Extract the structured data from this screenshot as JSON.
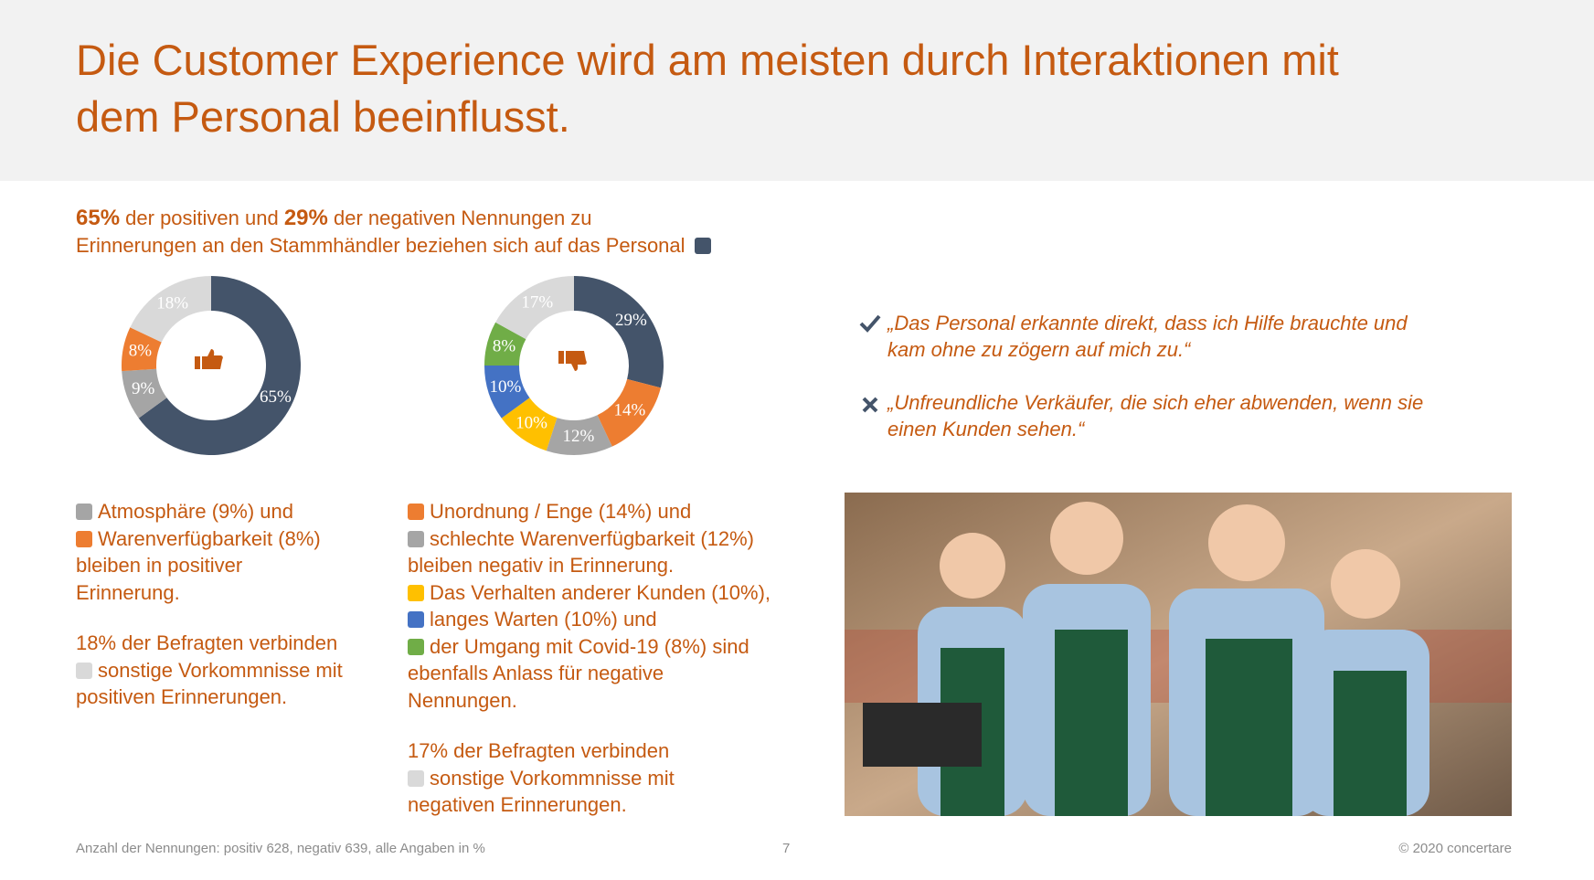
{
  "header": {
    "title_lines": [
      "Die Customer Experience wird am meisten durch Interaktionen mit",
      "dem Personal beeinflusst."
    ]
  },
  "intro": {
    "line1": [
      "65%",
      " der positiven und ",
      "29%",
      " der negativen Nennungen zu"
    ],
    "line2": "Erinnerungen an den Stammhändler beziehen sich auf das Personal"
  },
  "chart_data": [
    {
      "type": "pie",
      "values": [
        65,
        9,
        8,
        18
      ],
      "value_labels": [
        "65%",
        "9%",
        "8%",
        "18%"
      ],
      "colors": [
        "#44546a",
        "#a5a5a5",
        "#ed7d31",
        "#d9d9d9"
      ]
    },
    {
      "type": "pie",
      "values": [
        29,
        14,
        12,
        10,
        10,
        8,
        17
      ],
      "value_labels": [
        "29%",
        "14%",
        "12%",
        "10%",
        "10%",
        "8%",
        "17%"
      ],
      "colors": [
        "#44546a",
        "#ed7d31",
        "#a5a5a5",
        "#ffc000",
        "#4472c4",
        "#70ad47",
        "#d9d9d9"
      ]
    }
  ],
  "left_notes": [
    "Atmosphäre (9%) und",
    "Warenverfügbarkeit (8%)",
    "bleiben in positiver",
    "Erinnerung.",
    "18% der Befragten verbinden",
    "sonstige Vorkommnisse mit",
    "positiven Erinnerungen."
  ],
  "right_notes": [
    "Unordnung / Enge (14%) und",
    "schlechte Warenverfügbarkeit (12%)",
    "bleiben negativ in Erinnerung.",
    "Das Verhalten anderer Kunden (10%),",
    "langes Warten (10%) und",
    "der Umgang mit Covid-19 (8%) sind",
    "ebenfalls Anlass für negative",
    "Nennungen.",
    "17% der Befragten verbinden",
    "sonstige Vorkommnisse mit",
    "negativen Erinnerungen."
  ],
  "quotes": [
    [
      "„Das Personal erkannte direkt, dass ich Hilfe brauchte und",
      "kam ohne zu zögern auf mich zu.“"
    ],
    [
      "„Unfreundliche Verkäufer, die sich eher abwenden, wenn sie",
      "einen Kunden sehen.“"
    ]
  ],
  "footer": {
    "note": "Anzahl der Nennungen: positiv 628, negativ 639, alle Angaben in %",
    "page": "7",
    "copyright": "© 2020 concertare"
  }
}
